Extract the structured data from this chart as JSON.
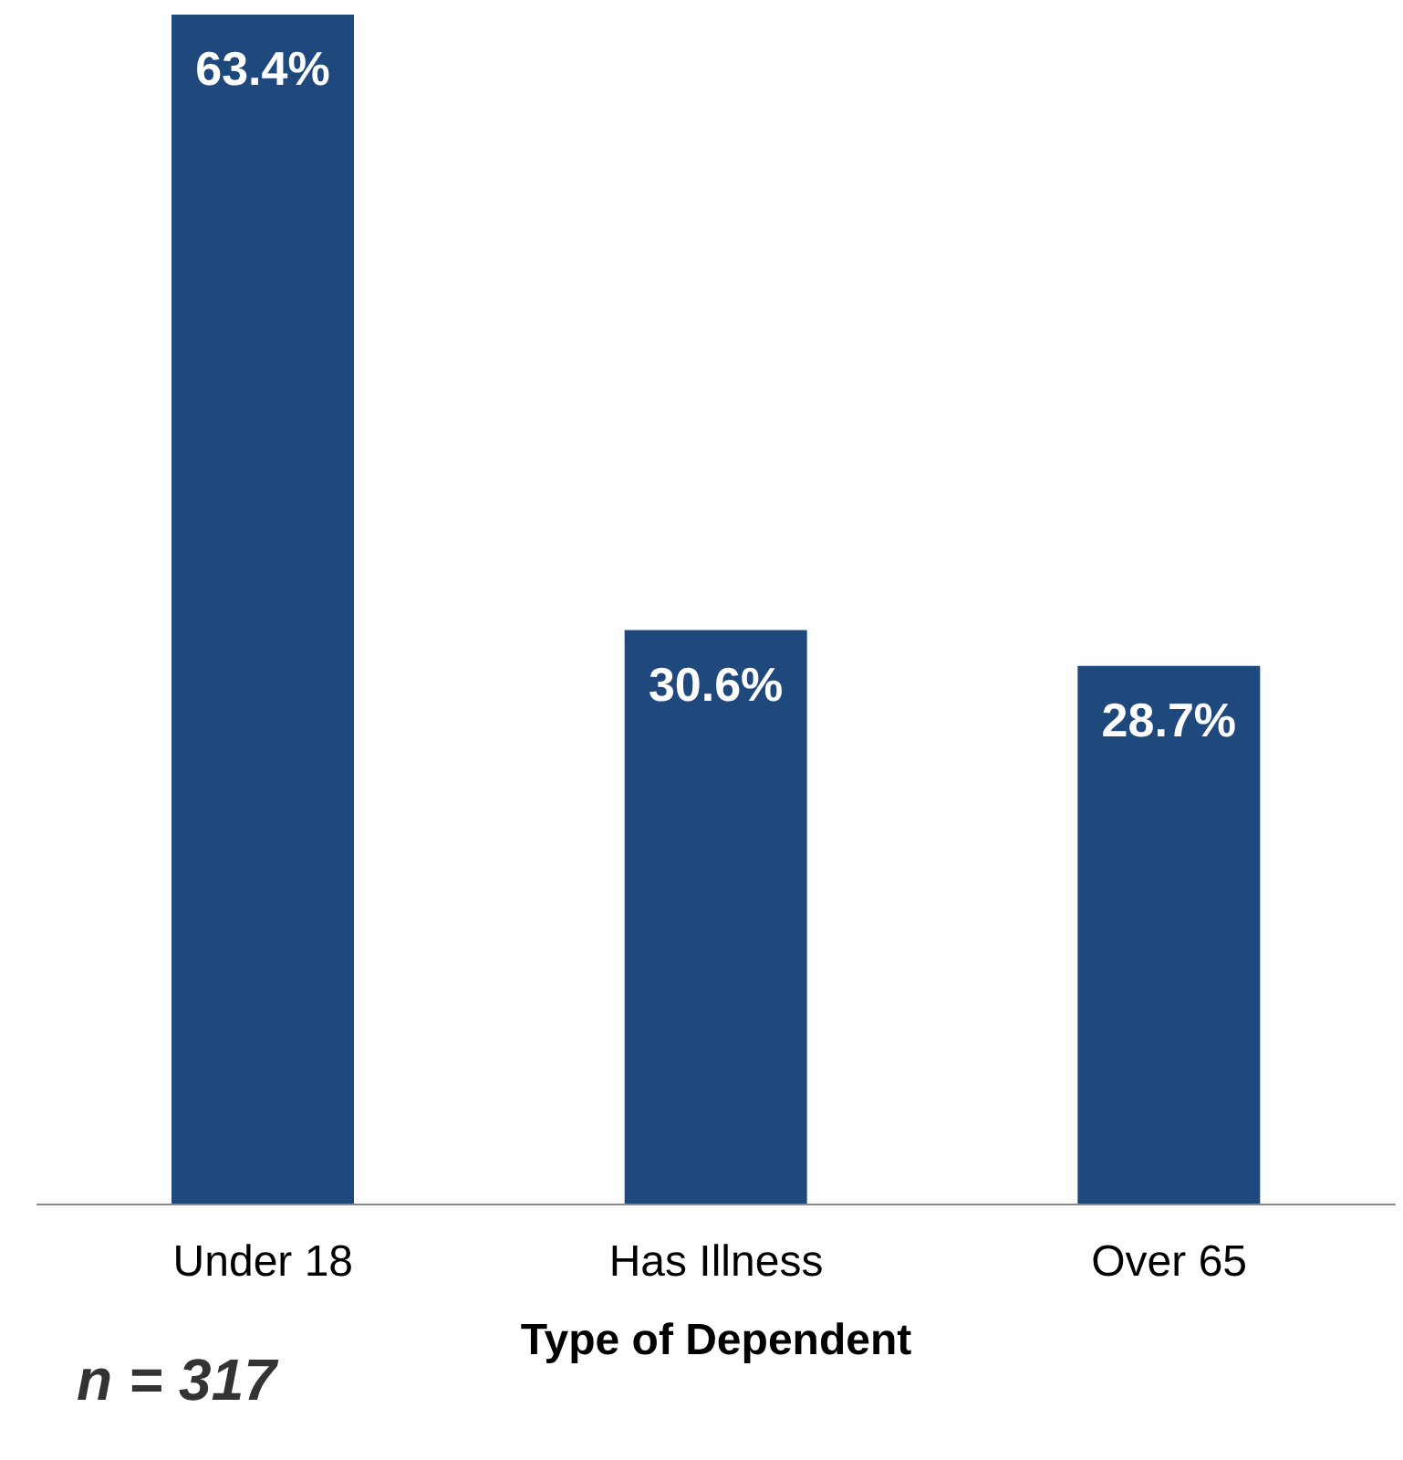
{
  "chart_data": {
    "type": "bar",
    "xlabel": "Type of Dependent",
    "categories": [
      "Under 18",
      "Has Illness",
      "Over 65"
    ],
    "values": [
      63.4,
      30.6,
      28.7
    ],
    "value_labels": [
      "63.4%",
      "30.6%",
      "28.7%"
    ],
    "color": "#1f497d",
    "annotations": [
      "n = 317"
    ]
  }
}
